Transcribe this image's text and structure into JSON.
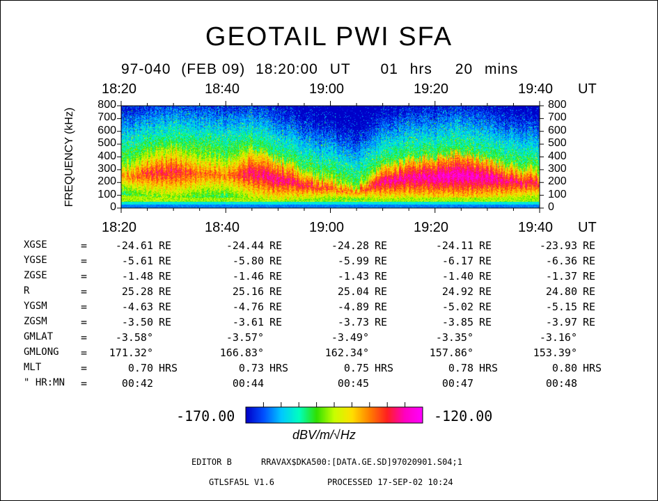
{
  "title": "GEOTAIL PWI SFA",
  "subtitle": {
    "date": "97-040",
    "day": "(FEB 09)",
    "start_time": "18:20:00",
    "ut": "UT",
    "duration_hrs": "01",
    "hrs_label": "hrs",
    "duration_mins": "20",
    "mins_label": "mins"
  },
  "time_axis": {
    "labels": [
      "18:20",
      "18:40",
      "19:00",
      "19:20",
      "19:40"
    ],
    "unit": "UT"
  },
  "chart_data": {
    "type": "heatmap",
    "title": "GEOTAIL PWI SFA",
    "xlabel": "UT",
    "ylabel": "FREQUENCY (kHz)",
    "x_ticks": [
      "18:20",
      "18:40",
      "19:00",
      "19:20",
      "19:40"
    ],
    "x_range": [
      "18:20",
      "19:40"
    ],
    "y_ticks": [
      0,
      100,
      200,
      300,
      400,
      500,
      600,
      700,
      800
    ],
    "ylim": [
      0,
      800
    ],
    "colorbar": {
      "min": -170.0,
      "max": -120.0,
      "min_label": "-170.00",
      "max_label": "-120.00",
      "unit": "dBV/m/√Hz"
    },
    "colormap": [
      "#0000c8",
      "#0050ff",
      "#00c8ff",
      "#00ffc0",
      "#30e000",
      "#c8ff00",
      "#ffe000",
      "#ff8000",
      "#ff2020",
      "#ff00c0",
      "#ff00ff"
    ],
    "intensity_profile": {
      "times": [
        "18:20",
        "18:25",
        "18:30",
        "18:35",
        "18:40",
        "18:45",
        "18:50",
        "18:55",
        "19:00",
        "19:05",
        "19:10",
        "19:15",
        "19:20",
        "19:25",
        "19:30",
        "19:35",
        "19:40"
      ],
      "band_top_khz": [
        380,
        440,
        480,
        450,
        420,
        460,
        380,
        300,
        250,
        180,
        330,
        380,
        400,
        430,
        380,
        320,
        300
      ],
      "band_low_khz": [
        100,
        90,
        80,
        80,
        80,
        80,
        60,
        60,
        60,
        60,
        70,
        80,
        80,
        80,
        80,
        80,
        80
      ],
      "peak_level": [
        -138,
        -132,
        -130,
        -134,
        -136,
        -128,
        -127,
        -130,
        -133,
        -135,
        -127,
        -126,
        -124,
        -123,
        -125,
        -128,
        -130
      ]
    }
  },
  "ephemeris": {
    "rows": [
      {
        "name": "XGSE",
        "eq": "=",
        "values": [
          "-24.61",
          "-24.44",
          "-24.28",
          "-24.11",
          "-23.93"
        ],
        "unit": "RE"
      },
      {
        "name": "YGSE",
        "eq": "=",
        "values": [
          "-5.61",
          "-5.80",
          "-5.99",
          "-6.17",
          "-6.36"
        ],
        "unit": "RE"
      },
      {
        "name": "ZGSE",
        "eq": "=",
        "values": [
          "-1.48",
          "-1.46",
          "-1.43",
          "-1.40",
          "-1.37"
        ],
        "unit": "RE"
      },
      {
        "name": "R",
        "eq": "=",
        "values": [
          "25.28",
          "25.16",
          "25.04",
          "24.92",
          "24.80"
        ],
        "unit": "RE"
      },
      {
        "name": "YGSM",
        "eq": "=",
        "values": [
          "-4.63",
          "-4.76",
          "-4.89",
          "-5.02",
          "-5.15"
        ],
        "unit": "RE"
      },
      {
        "name": "ZGSM",
        "eq": "=",
        "values": [
          "-3.50",
          "-3.61",
          "-3.73",
          "-3.85",
          "-3.97"
        ],
        "unit": "RE"
      },
      {
        "name": "GMLAT",
        "eq": "=",
        "values": [
          "-3.58°",
          "-3.57°",
          "-3.49°",
          "-3.35°",
          "-3.16°"
        ],
        "unit": ""
      },
      {
        "name": "GMLONG",
        "eq": "=",
        "values": [
          "171.32°",
          "166.83°",
          "162.34°",
          "157.86°",
          "153.39°"
        ],
        "unit": ""
      },
      {
        "name": "MLT",
        "eq": "=",
        "values": [
          "0.70",
          "0.73",
          "0.75",
          "0.78",
          "0.80"
        ],
        "unit": "HRS"
      },
      {
        "name": "\" HR:MN",
        "eq": "=",
        "values": [
          "00:42",
          "00:44",
          "00:45",
          "00:47",
          "00:48"
        ],
        "unit": ""
      }
    ]
  },
  "footer": {
    "editor": "EDITOR B",
    "path": "RRAVAX$DKA500:[DATA.GE.SD]97020901.S04;1",
    "program": "GTLSFA5L V1.6",
    "processed": "PROCESSED 17-SEP-02  10:24"
  }
}
